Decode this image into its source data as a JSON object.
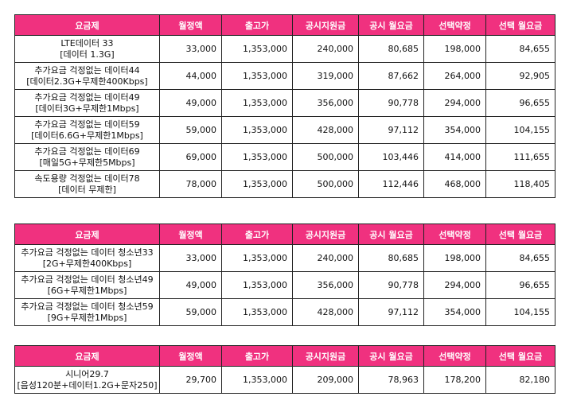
{
  "headers": [
    "요금제",
    "월정액",
    "출고가",
    "공시지원금",
    "공시 월요금",
    "선택약정",
    "선택 월요금"
  ],
  "colors": {
    "header_bg": "#f0317f",
    "header_text": "#ffffff",
    "blue_value": "#1f3d7a"
  },
  "tables": [
    {
      "rows": [
        {
          "plan": [
            "LTE데이터 33",
            "[데이터 1.3G]"
          ],
          "values": [
            "33,000",
            "1,353,000",
            "240,000",
            "80,685",
            "198,000",
            "84,655"
          ]
        },
        {
          "plan": [
            "추가요금 걱정없는 데이터44",
            "[데이터2.3G+무제한400Kbps]"
          ],
          "values": [
            "44,000",
            "1,353,000",
            "319,000",
            "87,662",
            "264,000",
            "92,905"
          ]
        },
        {
          "plan": [
            "추가요금 걱정없는 데이터49",
            "[데이터3G+무제한1Mbps]"
          ],
          "values": [
            "49,000",
            "1,353,000",
            "356,000",
            "90,778",
            "294,000",
            "96,655"
          ]
        },
        {
          "plan": [
            "추가요금 걱정없는 데이터59",
            "[데이터6.6G+무제한1Mbps]"
          ],
          "values": [
            "59,000",
            "1,353,000",
            "428,000",
            "97,112",
            "354,000",
            "104,155"
          ]
        },
        {
          "plan": [
            "추가요금 걱정없는 데이터69",
            "[매일5G+무제한5Mbps]"
          ],
          "values": [
            "69,000",
            "1,353,000",
            "500,000",
            "103,446",
            "414,000",
            "111,655"
          ]
        },
        {
          "plan": [
            "속도용량 걱정없는 데이터78",
            "[데이터 무제한]"
          ],
          "values": [
            "78,000",
            "1,353,000",
            "500,000",
            "112,446",
            "468,000",
            "118,405"
          ]
        }
      ]
    },
    {
      "rows": [
        {
          "plan": [
            "추가요금 걱정없는 데이터 청소년33",
            "[2G+무제한400Kbps]"
          ],
          "values": [
            "33,000",
            "1,353,000",
            "240,000",
            "80,685",
            "198,000",
            "84,655"
          ]
        },
        {
          "plan": [
            "추가요금 걱정없는 데이터 청소년49",
            "[6G+무제한1Mbps]"
          ],
          "values": [
            "49,000",
            "1,353,000",
            "356,000",
            "90,778",
            "294,000",
            "96,655"
          ]
        },
        {
          "plan": [
            "추가요금 걱정없는 데이터 청소년59",
            "[9G+무제한1Mbps]"
          ],
          "values": [
            "59,000",
            "1,353,000",
            "428,000",
            "97,112",
            "354,000",
            "104,155"
          ]
        }
      ]
    },
    {
      "rows": [
        {
          "plan": [
            "시니어29.7",
            "[음성120분+데이터1.2G+문자250]"
          ],
          "values": [
            "29,700",
            "1,353,000",
            "209,000",
            "78,963",
            "178,200",
            "82,180"
          ]
        }
      ]
    }
  ]
}
